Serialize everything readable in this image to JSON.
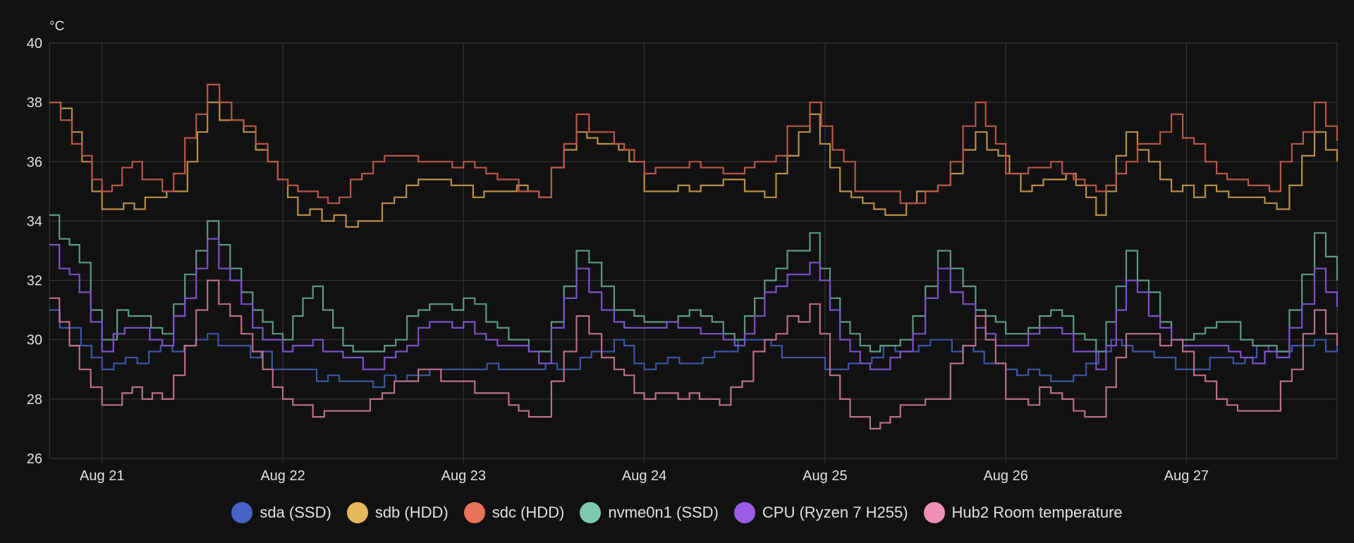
{
  "chart_data": {
    "type": "line",
    "y_unit": "°C",
    "ylim": [
      26,
      40
    ],
    "y_ticks": [
      26,
      28,
      30,
      32,
      34,
      36,
      38,
      40
    ],
    "x_range": [
      "2025-08-20T17:00",
      "2025-08-27T20:00"
    ],
    "x_ticks": [
      {
        "date": "2025-08-21T00:00",
        "label": "Aug 21"
      },
      {
        "date": "2025-08-22T00:00",
        "label": "Aug 22"
      },
      {
        "date": "2025-08-23T00:00",
        "label": "Aug 23"
      },
      {
        "date": "2025-08-24T00:00",
        "label": "Aug 24"
      },
      {
        "date": "2025-08-25T00:00",
        "label": "Aug 25"
      },
      {
        "date": "2025-08-26T00:00",
        "label": "Aug 26"
      },
      {
        "date": "2025-08-27T00:00",
        "label": "Aug 27"
      }
    ],
    "grid": true,
    "legend_position": "bottom",
    "series": [
      {
        "name": "sda (SSD)",
        "color": "#4a63c8",
        "line_color": "#3e56a6",
        "x": [
          "2025-08-20T17:00",
          "2025-08-21T00:00",
          "2025-08-21T14:00",
          "2025-08-22T00:00",
          "2025-08-22T09:00",
          "2025-08-23T00:00",
          "2025-08-23T14:00",
          "2025-08-23T20:00",
          "2025-08-24T00:00",
          "2025-08-24T14:00",
          "2025-08-25T00:00",
          "2025-08-25T14:00",
          "2025-08-26T00:00",
          "2025-08-26T09:00",
          "2025-08-26T14:00",
          "2025-08-27T00:00",
          "2025-08-27T14:00",
          "2025-08-27T20:00"
        ],
        "values": [
          31.0,
          29.0,
          30.2,
          29.0,
          28.5,
          29.0,
          29.0,
          30.0,
          29.0,
          30.0,
          29.0,
          30.0,
          29.0,
          28.7,
          30.0,
          29.0,
          29.8,
          29.9
        ]
      },
      {
        "name": "sdb (HDD)",
        "color": "#e5b85c",
        "line_color": "#b8904a",
        "x": [
          "2025-08-20T17:00",
          "2025-08-20T20:00",
          "2025-08-21T00:00",
          "2025-08-21T10:00",
          "2025-08-21T14:00",
          "2025-08-21T22:00",
          "2025-08-22T02:00",
          "2025-08-22T10:00",
          "2025-08-22T18:00",
          "2025-08-23T10:00",
          "2025-08-23T15:00",
          "2025-08-23T22:00",
          "2025-08-24T00:00",
          "2025-08-24T06:00",
          "2025-08-24T12:00",
          "2025-08-24T16:00",
          "2025-08-24T22:00",
          "2025-08-25T02:00",
          "2025-08-25T08:00",
          "2025-08-25T15:00",
          "2025-08-25T20:00",
          "2025-08-26T02:00",
          "2025-08-26T08:00",
          "2025-08-26T12:00",
          "2025-08-26T16:00",
          "2025-08-26T22:00",
          "2025-08-27T04:00",
          "2025-08-27T12:00",
          "2025-08-27T17:00",
          "2025-08-27T20:00"
        ],
        "values": [
          38.0,
          37.0,
          34.3,
          35.0,
          38.0,
          36.0,
          34.2,
          34.0,
          35.3,
          34.8,
          37.0,
          36.0,
          35.0,
          35.0,
          35.3,
          34.8,
          37.5,
          35.0,
          34.2,
          35.2,
          37.0,
          35.0,
          35.5,
          34.2,
          37.0,
          35.0,
          35.0,
          34.3,
          37.0,
          36.0
        ]
      },
      {
        "name": "sdc (HDD)",
        "color": "#e8735a",
        "line_color": "#b8574a",
        "x": [
          "2025-08-20T17:00",
          "2025-08-20T20:00",
          "2025-08-21T00:00",
          "2025-08-21T04:00",
          "2025-08-21T08:00",
          "2025-08-21T14:00",
          "2025-08-21T22:00",
          "2025-08-22T02:00",
          "2025-08-22T06:00",
          "2025-08-22T12:00",
          "2025-08-23T00:00",
          "2025-08-23T06:00",
          "2025-08-23T10:00",
          "2025-08-23T15:00",
          "2025-08-23T20:00",
          "2025-08-24T00:00",
          "2025-08-24T06:00",
          "2025-08-24T12:00",
          "2025-08-24T16:00",
          "2025-08-24T22:00",
          "2025-08-25T04:00",
          "2025-08-25T10:00",
          "2025-08-25T15:00",
          "2025-08-25T20:00",
          "2025-08-26T00:00",
          "2025-08-26T06:00",
          "2025-08-26T12:00",
          "2025-08-26T16:00",
          "2025-08-26T22:00",
          "2025-08-27T04:00",
          "2025-08-27T11:00",
          "2025-08-27T17:00",
          "2025-08-27T20:00"
        ],
        "values": [
          38.0,
          36.5,
          35.0,
          36.0,
          35.0,
          38.5,
          36.0,
          35.0,
          34.6,
          36.0,
          36.0,
          35.3,
          34.8,
          37.5,
          36.5,
          35.5,
          36.0,
          35.5,
          36.0,
          38.0,
          35.0,
          34.6,
          35.2,
          38.0,
          35.5,
          36.0,
          35.0,
          36.0,
          37.5,
          35.5,
          35.0,
          38.0,
          36.7
        ]
      },
      {
        "name": "nvme0n1 (SSD)",
        "color": "#7fc8b0",
        "line_color": "#5f9986",
        "x": [
          "2025-08-20T17:00",
          "2025-08-20T21:00",
          "2025-08-21T00:00",
          "2025-08-21T02:00",
          "2025-08-21T08:00",
          "2025-08-21T14:00",
          "2025-08-21T20:00",
          "2025-08-22T00:00",
          "2025-08-22T04:00",
          "2025-08-22T08:00",
          "2025-08-22T12:00",
          "2025-08-22T18:00",
          "2025-08-23T00:00",
          "2025-08-23T06:00",
          "2025-08-23T10:00",
          "2025-08-23T15:00",
          "2025-08-23T20:00",
          "2025-08-24T00:00",
          "2025-08-24T06:00",
          "2025-08-24T12:00",
          "2025-08-24T16:00",
          "2025-08-24T22:00",
          "2025-08-25T02:00",
          "2025-08-25T06:00",
          "2025-08-25T10:00",
          "2025-08-25T15:00",
          "2025-08-25T20:00",
          "2025-08-26T00:00",
          "2025-08-26T06:00",
          "2025-08-26T12:00",
          "2025-08-26T16:00",
          "2025-08-26T22:00",
          "2025-08-27T04:00",
          "2025-08-27T12:00",
          "2025-08-27T17:00",
          "2025-08-27T20:00"
        ],
        "values": [
          34.1,
          32.5,
          30.0,
          31.0,
          30.2,
          34.0,
          31.0,
          30.0,
          31.8,
          29.8,
          29.5,
          31.0,
          31.4,
          30.0,
          29.5,
          33.0,
          31.0,
          30.5,
          31.0,
          30.0,
          32.0,
          33.5,
          30.5,
          29.5,
          30.0,
          33.0,
          31.0,
          30.2,
          31.0,
          29.5,
          33.0,
          30.0,
          30.5,
          29.5,
          33.5,
          32.0
        ]
      },
      {
        "name": "CPU (Ryzen 7 H255)",
        "color": "#9b5de5",
        "line_color": "#7a55c8",
        "x": [
          "2025-08-20T17:00",
          "2025-08-20T21:00",
          "2025-08-21T00:00",
          "2025-08-21T03:00",
          "2025-08-21T08:00",
          "2025-08-21T14:00",
          "2025-08-21T20:00",
          "2025-08-22T00:00",
          "2025-08-22T04:00",
          "2025-08-22T08:00",
          "2025-08-22T12:00",
          "2025-08-22T18:00",
          "2025-08-23T00:00",
          "2025-08-23T06:00",
          "2025-08-23T10:00",
          "2025-08-23T15:00",
          "2025-08-23T20:00",
          "2025-08-24T00:00",
          "2025-08-24T06:00",
          "2025-08-24T12:00",
          "2025-08-24T16:00",
          "2025-08-24T22:00",
          "2025-08-25T02:00",
          "2025-08-25T06:00",
          "2025-08-25T10:00",
          "2025-08-25T15:00",
          "2025-08-25T20:00",
          "2025-08-26T00:00",
          "2025-08-26T06:00",
          "2025-08-26T12:00",
          "2025-08-26T16:00",
          "2025-08-26T22:00",
          "2025-08-27T04:00",
          "2025-08-27T12:00",
          "2025-08-27T17:00",
          "2025-08-27T20:00"
        ],
        "values": [
          33.2,
          31.5,
          29.5,
          30.4,
          29.8,
          33.3,
          30.3,
          29.5,
          30.0,
          29.3,
          29.0,
          30.3,
          30.5,
          29.8,
          29.2,
          32.4,
          30.5,
          30.3,
          30.4,
          29.8,
          31.5,
          32.6,
          30.0,
          28.9,
          29.5,
          32.3,
          30.3,
          29.7,
          30.4,
          29.0,
          32.0,
          30.0,
          29.7,
          29.3,
          32.4,
          31.1
        ]
      },
      {
        "name": "Hub2 Room temperature",
        "color": "#ee8fb6",
        "line_color": "#b9708a",
        "x": [
          "2025-08-20T17:00",
          "2025-08-20T21:00",
          "2025-08-21T00:00",
          "2025-08-21T04:00",
          "2025-08-21T08:00",
          "2025-08-21T14:00",
          "2025-08-21T20:00",
          "2025-08-22T00:00",
          "2025-08-22T04:00",
          "2025-08-22T10:00",
          "2025-08-22T18:00",
          "2025-08-23T00:00",
          "2025-08-23T06:00",
          "2025-08-23T10:00",
          "2025-08-23T15:00",
          "2025-08-23T20:00",
          "2025-08-24T00:00",
          "2025-08-24T06:00",
          "2025-08-24T10:00",
          "2025-08-24T16:00",
          "2025-08-24T22:00",
          "2025-08-25T02:00",
          "2025-08-25T06:00",
          "2025-08-25T10:00",
          "2025-08-25T15:00",
          "2025-08-25T20:00",
          "2025-08-26T00:00",
          "2025-08-26T06:00",
          "2025-08-26T12:00",
          "2025-08-26T16:00",
          "2025-08-26T22:00",
          "2025-08-27T04:00",
          "2025-08-27T11:00",
          "2025-08-27T17:00",
          "2025-08-27T20:00"
        ],
        "values": [
          31.4,
          29.0,
          27.8,
          28.4,
          28.0,
          32.0,
          29.5,
          28.0,
          27.4,
          27.6,
          29.0,
          28.6,
          27.8,
          27.3,
          30.8,
          29.0,
          28.0,
          28.1,
          27.7,
          30.0,
          31.1,
          28.0,
          27.0,
          27.7,
          28.0,
          30.8,
          28.0,
          28.2,
          27.3,
          30.2,
          30.0,
          28.0,
          27.5,
          31.0,
          29.8
        ]
      }
    ]
  }
}
